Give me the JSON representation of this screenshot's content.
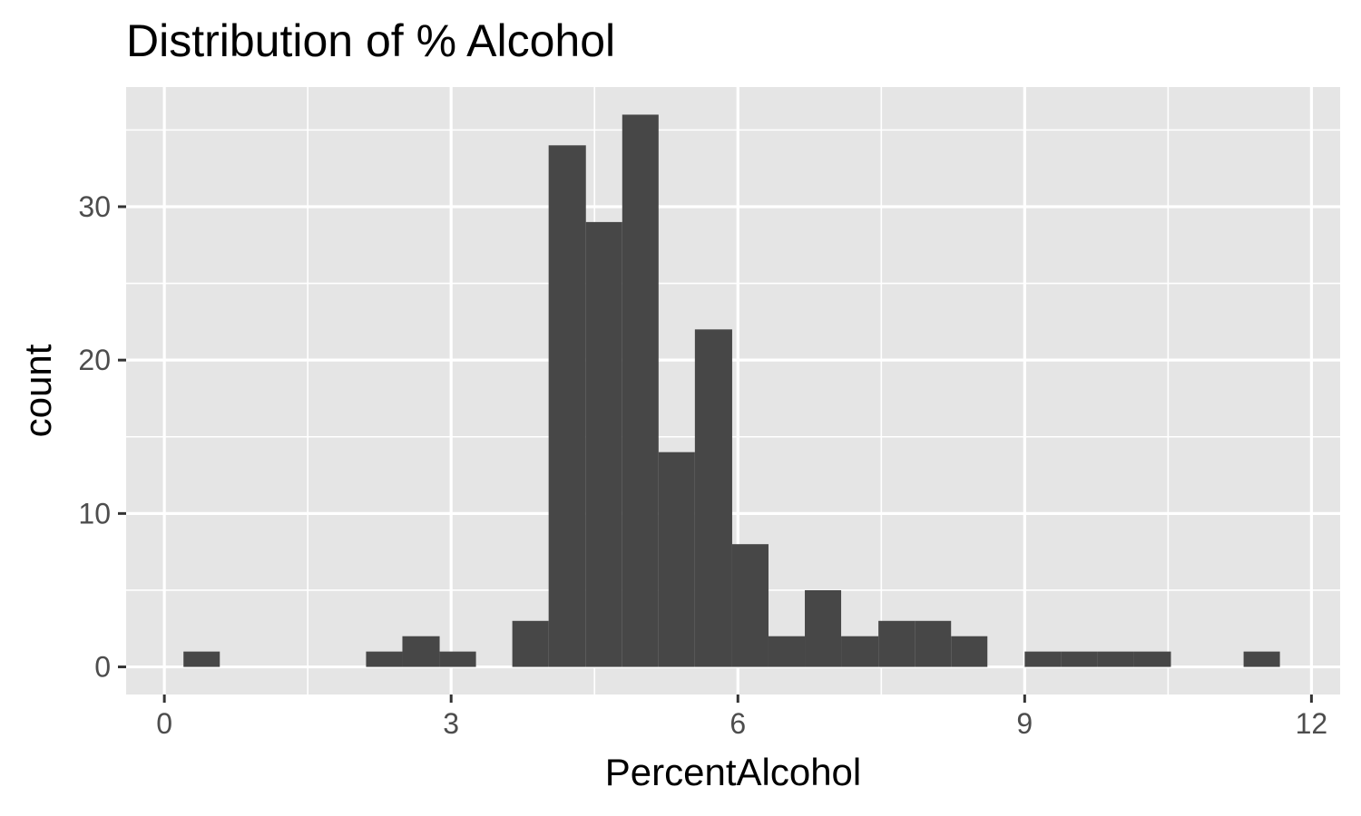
{
  "chart_data": {
    "type": "bar",
    "title": "Distribution of % Alcohol",
    "xlabel": "PercentAlcohol",
    "ylabel": "count",
    "xlim": [
      -0.4,
      12.3
    ],
    "ylim": [
      -1.8,
      37.8
    ],
    "x_ticks": [
      0,
      3,
      6,
      9,
      12
    ],
    "y_ticks": [
      0,
      10,
      20,
      30
    ],
    "bin_width": 0.383,
    "bins": [
      {
        "x0": 0.2,
        "x1": 0.58,
        "count": 1
      },
      {
        "x0": 2.11,
        "x1": 2.49,
        "count": 1
      },
      {
        "x0": 2.49,
        "x1": 2.88,
        "count": 2
      },
      {
        "x0": 2.88,
        "x1": 3.26,
        "count": 1
      },
      {
        "x0": 3.64,
        "x1": 4.02,
        "count": 3
      },
      {
        "x0": 4.02,
        "x1": 4.41,
        "count": 34
      },
      {
        "x0": 4.41,
        "x1": 4.79,
        "count": 29
      },
      {
        "x0": 4.79,
        "x1": 5.17,
        "count": 36
      },
      {
        "x0": 5.17,
        "x1": 5.55,
        "count": 14
      },
      {
        "x0": 5.55,
        "x1": 5.94,
        "count": 22
      },
      {
        "x0": 5.94,
        "x1": 6.32,
        "count": 8
      },
      {
        "x0": 6.32,
        "x1": 6.7,
        "count": 2
      },
      {
        "x0": 6.7,
        "x1": 7.08,
        "count": 5
      },
      {
        "x0": 7.08,
        "x1": 7.47,
        "count": 2
      },
      {
        "x0": 7.47,
        "x1": 7.85,
        "count": 3
      },
      {
        "x0": 7.85,
        "x1": 8.23,
        "count": 3
      },
      {
        "x0": 8.23,
        "x1": 8.61,
        "count": 2
      },
      {
        "x0": 9.0,
        "x1": 9.38,
        "count": 1
      },
      {
        "x0": 9.38,
        "x1": 9.76,
        "count": 1
      },
      {
        "x0": 9.76,
        "x1": 10.14,
        "count": 1
      },
      {
        "x0": 10.14,
        "x1": 10.53,
        "count": 1
      },
      {
        "x0": 11.29,
        "x1": 11.67,
        "count": 1
      }
    ],
    "grid": true,
    "legend": "none",
    "colors": {
      "bar": "#474747",
      "panel": "#e5e5e5",
      "grid": "#ffffff",
      "tick_label": "#4d4d4d",
      "text": "#000000"
    }
  }
}
